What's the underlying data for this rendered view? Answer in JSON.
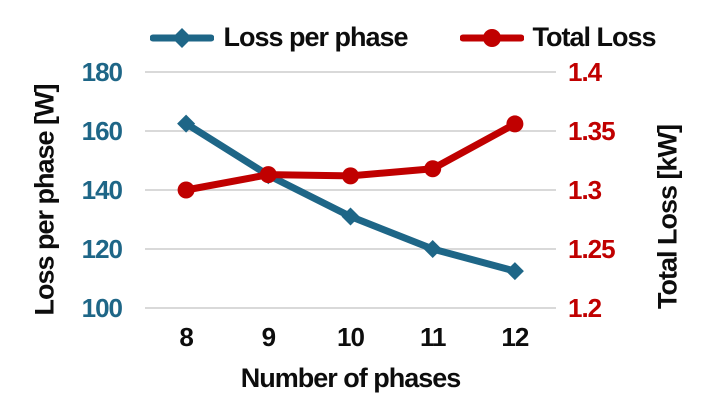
{
  "chart_data": {
    "type": "line",
    "title": "",
    "xlabel": "Number of phases",
    "categories": [
      8,
      9,
      10,
      11,
      12
    ],
    "grid": "horizontal",
    "legend_position": "top",
    "left_axis": {
      "label": "Loss per phase [W]",
      "ticks": [
        180,
        160,
        140,
        120,
        100
      ],
      "range": [
        100,
        180
      ],
      "color": "#1E6687"
    },
    "right_axis": {
      "label": "Total Loss [kW]",
      "ticks": [
        1.4,
        1.35,
        1.3,
        1.25,
        1.2
      ],
      "range": [
        1.2,
        1.4
      ],
      "color": "#C00000"
    },
    "series": [
      {
        "name": "Loss per phase",
        "axis": "left",
        "color": "#1E6687",
        "marker": "diamond",
        "values": [
          162.5,
          145,
          131,
          120,
          112.5
        ]
      },
      {
        "name": "Total Loss",
        "axis": "right",
        "color": "#C00000",
        "marker": "circle",
        "values": [
          1.3,
          1.313,
          1.312,
          1.318,
          1.356
        ]
      }
    ],
    "colors": {
      "grid": "#D9D9D9",
      "text": "#0D0D0D",
      "background": "#FFFFFF"
    }
  }
}
